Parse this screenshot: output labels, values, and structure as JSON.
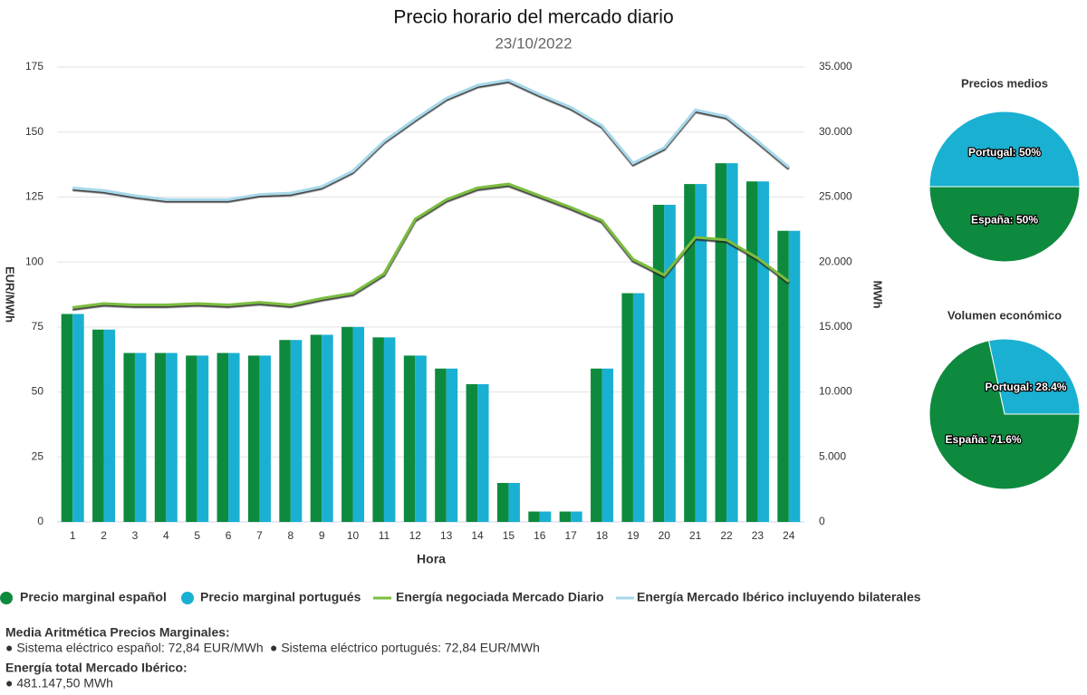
{
  "chart_data": [
    {
      "type": "bar",
      "title": "Precio horario del mercado diario",
      "subtitle": "23/10/2022",
      "x_label": "Hora",
      "y_label": "EUR/MWh",
      "y2_label": "MWh",
      "categories": [
        "1",
        "2",
        "3",
        "4",
        "5",
        "6",
        "7",
        "8",
        "9",
        "10",
        "11",
        "12",
        "13",
        "14",
        "15",
        "16",
        "17",
        "18",
        "19",
        "20",
        "21",
        "22",
        "23",
        "24"
      ],
      "ylim": [
        0,
        175
      ],
      "yticks": [
        0,
        25,
        50,
        75,
        100,
        125,
        150,
        175
      ],
      "y2lim": [
        0,
        35000
      ],
      "y2ticks": [
        0,
        {
          "value": 5000,
          "label": "5.000"
        },
        {
          "value": 10000,
          "label": "10.000"
        },
        {
          "value": 15000,
          "label": "15.000"
        },
        {
          "value": 20000,
          "label": "20.000"
        },
        {
          "value": 25000,
          "label": "25.000"
        },
        {
          "value": 30000,
          "label": "30.000"
        },
        {
          "value": 35000,
          "label": "35.000"
        }
      ],
      "grid": true,
      "series": [
        {
          "name": "Precio marginal español",
          "type": "bar",
          "color": "#0e8a3e",
          "values": [
            80,
            74,
            65,
            65,
            64,
            65,
            64,
            70,
            72,
            75,
            71,
            64,
            59,
            53,
            15,
            4,
            4,
            59,
            88,
            122,
            130,
            138,
            131,
            112
          ]
        },
        {
          "name": "Precio marginal portugués",
          "type": "bar",
          "color": "#1ab0d2",
          "values": [
            80,
            74,
            65,
            65,
            64,
            65,
            64,
            70,
            72,
            75,
            71,
            64,
            59,
            53,
            15,
            4,
            4,
            59,
            88,
            122,
            130,
            138,
            131,
            112
          ]
        },
        {
          "name": "Energía negociada Mercado Diario",
          "type": "line",
          "axis": "y2",
          "color": "#7cbd3f",
          "values": [
            16500,
            16800,
            16700,
            16700,
            16800,
            16700,
            16900,
            16700,
            17200,
            17600,
            19100,
            23300,
            24800,
            25700,
            26000,
            25100,
            24200,
            23200,
            20200,
            19000,
            21900,
            21700,
            20300,
            18500
          ]
        },
        {
          "name": "Energía Mercado Ibérico incluyendo bilaterales",
          "type": "line",
          "axis": "y2",
          "color": "#a8d8ea",
          "values": [
            25700,
            25500,
            25100,
            24800,
            24800,
            24800,
            25200,
            25300,
            25800,
            27000,
            29300,
            31000,
            32600,
            33600,
            34000,
            32900,
            31900,
            30500,
            27600,
            28800,
            31700,
            31200,
            29300,
            27300
          ]
        }
      ]
    },
    {
      "type": "pie",
      "title": "Precios medios",
      "categories": [
        "Portugal",
        "España"
      ],
      "colors": [
        "#1ab0d2",
        "#0e8a3e"
      ],
      "values": [
        50,
        50
      ],
      "value_labels": [
        "Portugal: 50%",
        "España: 50%"
      ]
    },
    {
      "type": "pie",
      "title": "Volumen económico",
      "categories": [
        "Portugal",
        "España"
      ],
      "colors": [
        "#1ab0d2",
        "#0e8a3e"
      ],
      "values": [
        28.4,
        71.6
      ],
      "value_labels": [
        "Portugal: 28.4%",
        "España: 71.6%"
      ]
    }
  ],
  "summary": {
    "prices_heading": "Media Aritmética Precios Marginales:",
    "prices": [
      "● Sistema eléctrico español: 72,84 EUR/MWh",
      "● Sistema eléctrico portugués: 72,84 EUR/MWh"
    ],
    "energy_heading": "Energía total Mercado Ibérico:",
    "energy": [
      "● 481.147,50 MWh"
    ]
  }
}
